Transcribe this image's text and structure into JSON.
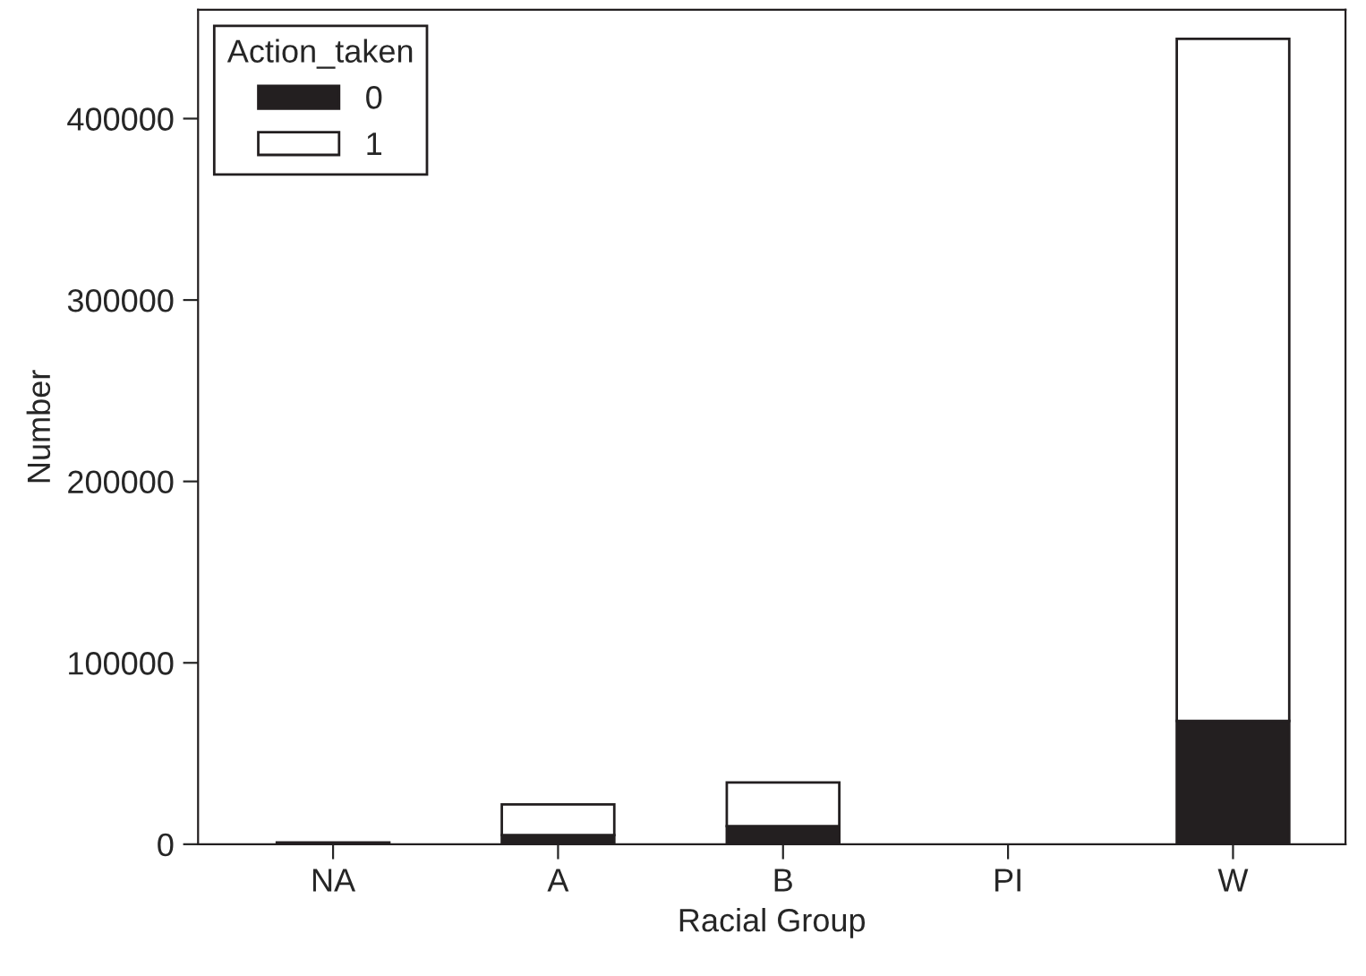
{
  "chart_data": {
    "type": "bar",
    "stacked": true,
    "xlabel": "Racial Group",
    "ylabel": "Number",
    "legend_title": "Action_taken",
    "legend": "top left",
    "categories": [
      "NA",
      "A",
      "B",
      "PI",
      "W"
    ],
    "series": [
      {
        "name": "0",
        "color": "#231f20",
        "values": [
          1000,
          5000,
          10000,
          null,
          68000
        ]
      },
      {
        "name": "1",
        "color": "#ffffff",
        "values": [
          null,
          17000,
          24000,
          null,
          376000
        ]
      }
    ],
    "ylim": [
      0,
      460000
    ],
    "yticks": [
      0,
      100000,
      200000,
      300000,
      400000
    ],
    "grid": false
  }
}
